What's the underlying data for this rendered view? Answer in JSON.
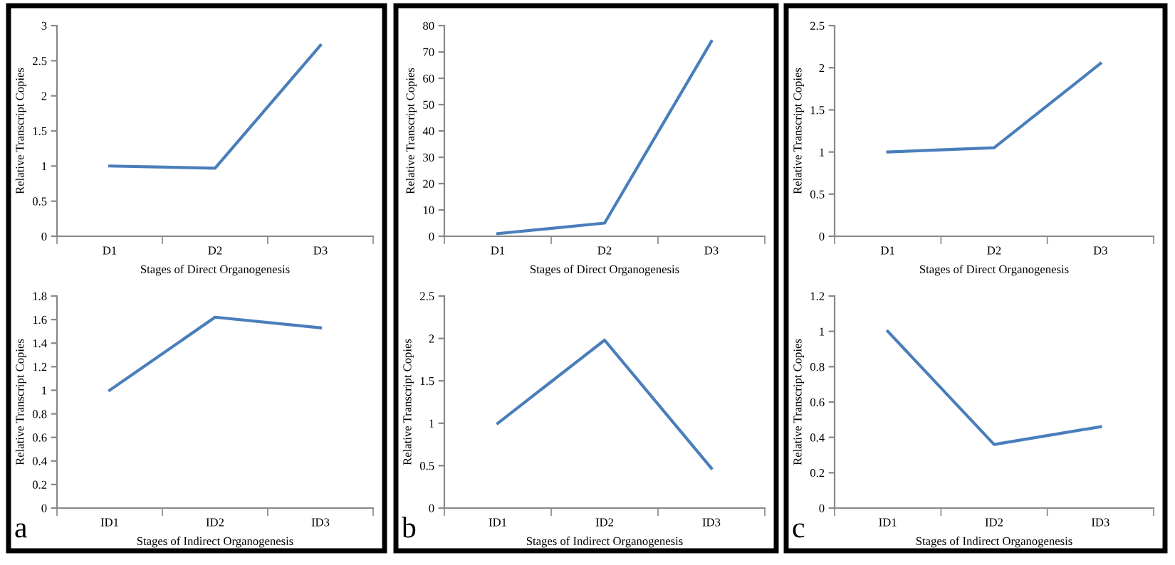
{
  "chart_data": [
    {
      "type": "line",
      "categories": [
        "D1",
        "D2",
        "D3"
      ],
      "values": [
        1,
        0.97,
        2.72
      ],
      "color": "#4a7ebb",
      "xlabel": "Stages of Direct Organogenesis",
      "ylabel": "Relative Transcript Copies",
      "ylim": [
        0,
        3
      ],
      "yticks": [
        0,
        0.5,
        1,
        1.5,
        2,
        2.5,
        3
      ],
      "grid": false
    },
    {
      "type": "line",
      "categories": [
        "ID1",
        "ID2",
        "ID3"
      ],
      "values": [
        1,
        1.62,
        1.53
      ],
      "color": "#4a7ebb",
      "xlabel": "Stages of Indirect Organogenesis",
      "ylabel": "Relative Transcript Copies",
      "ylim": [
        0,
        1.8
      ],
      "yticks": [
        0,
        0.2,
        0.4,
        0.6,
        0.8,
        1,
        1.2,
        1.4,
        1.6,
        1.8
      ],
      "grid": false,
      "annotations": [
        "a"
      ]
    },
    {
      "type": "line",
      "categories": [
        "D1",
        "D2",
        "D3"
      ],
      "values": [
        1,
        5,
        74
      ],
      "color": "#4a7ebb",
      "xlabel": "Stages of Direct Organogenesis",
      "ylabel": "Relative Transcript Copies",
      "ylim": [
        0,
        80
      ],
      "yticks": [
        0,
        10,
        20,
        30,
        40,
        50,
        60,
        70,
        80
      ],
      "grid": false
    },
    {
      "type": "line",
      "categories": [
        "ID1",
        "ID2",
        "ID3"
      ],
      "values": [
        1,
        1.98,
        0.47
      ],
      "color": "#4a7ebb",
      "xlabel": "Stages of Indirect Organogenesis",
      "ylabel": "Relative Transcript Copies",
      "ylim": [
        0,
        2.5
      ],
      "yticks": [
        0,
        0.5,
        1,
        1.5,
        2,
        2.5
      ],
      "grid": false,
      "annotations": [
        "b"
      ]
    },
    {
      "type": "line",
      "categories": [
        "D1",
        "D2",
        "D3"
      ],
      "values": [
        1,
        1.05,
        2.05
      ],
      "color": "#4a7ebb",
      "xlabel": "Stages of Direct Organogenesis",
      "ylabel": "Relative Transcript Copies",
      "ylim": [
        0,
        2.5
      ],
      "yticks": [
        0,
        0.5,
        1,
        1.5,
        2,
        2.5
      ],
      "grid": false
    },
    {
      "type": "line",
      "categories": [
        "ID1",
        "ID2",
        "ID3"
      ],
      "values": [
        1,
        0.36,
        0.46
      ],
      "color": "#4a7ebb",
      "xlabel": "Stages of Indirect Organogenesis",
      "ylabel": "Relative Transcript Copies",
      "ylim": [
        0,
        1.2
      ],
      "yticks": [
        0,
        0.2,
        0.4,
        0.6,
        0.8,
        1,
        1.2
      ],
      "grid": false,
      "annotations": [
        "c"
      ]
    }
  ]
}
